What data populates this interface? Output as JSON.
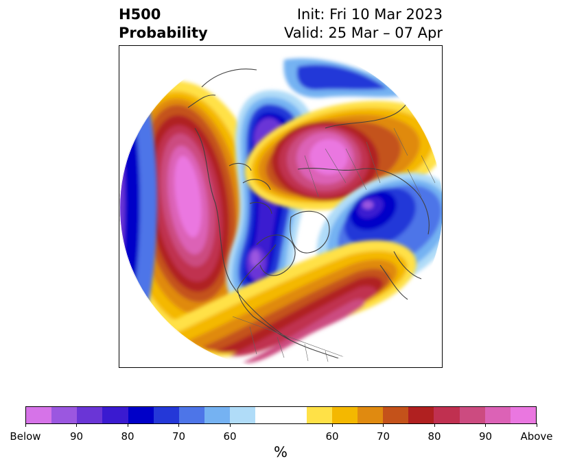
{
  "title": {
    "left_line1": "H500",
    "left_line2": "Probability",
    "right_line1": "Init: Fri 10 Mar 2023",
    "right_line2": "Valid: 25 Mar – 07 Apr"
  },
  "map": {
    "projection": "polar stereographic (North Pole)",
    "features": [
      "north-america",
      "greenland",
      "eurasia",
      "arctic-ocean"
    ],
    "anomalies": [
      {
        "region": "Eastern Pacific / Alaska",
        "category": "Above",
        "max_percent": 100
      },
      {
        "region": "Northern Canada / Hudson Bay",
        "category": "Below",
        "max_percent": 100
      },
      {
        "region": "Arctic Russia / Siberia",
        "category": "Above",
        "max_percent": 100
      },
      {
        "region": "Scandinavia / Northern Europe",
        "category": "Below",
        "max_percent": 90
      },
      {
        "region": "Southern United States / North Atlantic",
        "category": "Above",
        "max_percent": 90
      }
    ]
  },
  "colorbar": {
    "unit": "%",
    "colors": [
      "#d673e8",
      "#9b57e0",
      "#6a35d6",
      "#3a1ad0",
      "#0000c8",
      "#2438d8",
      "#4d75e8",
      "#75b2f2",
      "#b0dcf8",
      "#ffffff",
      "#ffe147",
      "#f4b800",
      "#e08a10",
      "#c4521a",
      "#b02020",
      "#c03050",
      "#cc4b80",
      "#dc62b6",
      "#ea77e0"
    ],
    "wide_index": 9,
    "tick_labels": [
      "Below",
      "90",
      "80",
      "70",
      "60",
      "60",
      "70",
      "80",
      "90",
      "Above"
    ]
  }
}
